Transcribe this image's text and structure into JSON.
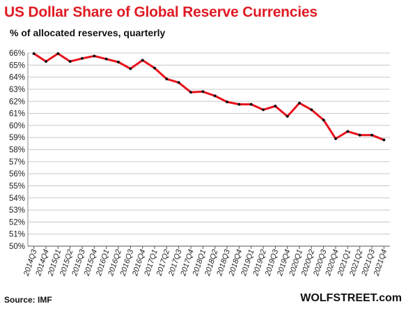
{
  "header": {
    "title": "US Dollar Share of Global  Reserve Currencies",
    "subtitle": "% of allocated reserves, quarterly"
  },
  "footer": {
    "source": "Source: IMF",
    "brand": "WOLFSTREET.com"
  },
  "colors": {
    "title": "#e01b24",
    "line": "#e8101a",
    "marker": "#111111",
    "grid": "#c8c8c8"
  },
  "chart_data": {
    "type": "line",
    "title": "US Dollar Share of Global  Reserve Currencies",
    "subtitle": "% of allocated reserves, quarterly",
    "xlabel": "",
    "ylabel": "",
    "ylim": [
      50,
      66
    ],
    "y_ticks": [
      "50%",
      "51%",
      "52%",
      "53%",
      "54%",
      "55%",
      "56%",
      "57%",
      "58%",
      "59%",
      "60%",
      "61%",
      "62%",
      "63%",
      "64%",
      "65%",
      "66%"
    ],
    "grid": "horizontal",
    "categories": [
      "2014Q3",
      "2014Q4",
      "2015Q1",
      "2015Q2",
      "2015Q3",
      "2015Q4",
      "2016Q1",
      "2016Q2",
      "2016Q3",
      "2016Q4",
      "2017Q1",
      "2017Q2",
      "2017Q3",
      "2017Q4",
      "2018Q1",
      "2018Q2",
      "2018Q3",
      "2018Q4",
      "2019Q1",
      "2019Q2",
      "2019Q3",
      "2019Q4",
      "2020Q1",
      "2020Q2",
      "2020Q3",
      "2020Q4",
      "2021Q1",
      "2021Q2",
      "2021Q3",
      "2021Q4"
    ],
    "series": [
      {
        "values": [
          65.95,
          65.3,
          65.95,
          65.3,
          65.55,
          65.75,
          65.5,
          65.25,
          64.7,
          65.4,
          64.75,
          63.85,
          63.55,
          62.75,
          62.8,
          62.45,
          61.95,
          61.75,
          61.75,
          61.3,
          61.6,
          60.75,
          61.85,
          61.3,
          60.45,
          58.9,
          59.5,
          59.2,
          59.2,
          58.8
        ]
      }
    ]
  }
}
